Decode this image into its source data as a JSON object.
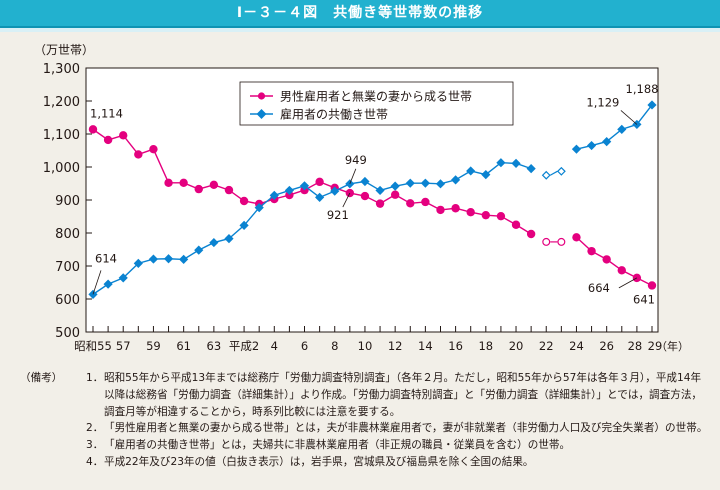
{
  "header": {
    "title": "Ⅰ－３－４図　共働き等世帯数の推移"
  },
  "chart_data": {
    "type": "line",
    "title": "共働き等世帯数の推移",
    "ylabel": "（万世帯）",
    "xlabel": "（年）",
    "ylim": [
      500,
      1300
    ],
    "yticks": [
      500,
      600,
      700,
      800,
      900,
      1000,
      1100,
      1200,
      1300
    ],
    "ytick_labels": [
      "500",
      "600",
      "700",
      "800",
      "900",
      "1,000",
      "1,100",
      "1,200",
      "1,300"
    ],
    "x": [
      "昭和55",
      "56",
      "57",
      "58",
      "59",
      "60",
      "61",
      "62",
      "63",
      "平成元",
      "2",
      "3",
      "4",
      "5",
      "6",
      "7",
      "8",
      "9",
      "10",
      "11",
      "12",
      "13",
      "14",
      "15",
      "16",
      "17",
      "18",
      "19",
      "20",
      "21",
      "22",
      "23",
      "24",
      "25",
      "26",
      "27",
      "28",
      "29"
    ],
    "xtick_labels": [
      {
        "index": 0,
        "label": "昭和55"
      },
      {
        "index": 2,
        "label": "57"
      },
      {
        "index": 4,
        "label": "59"
      },
      {
        "index": 6,
        "label": "61"
      },
      {
        "index": 8,
        "label": "63"
      },
      {
        "index": 10,
        "label": "平成2"
      },
      {
        "index": 12,
        "label": "4"
      },
      {
        "index": 14,
        "label": "6"
      },
      {
        "index": 16,
        "label": "8"
      },
      {
        "index": 18,
        "label": "10"
      },
      {
        "index": 20,
        "label": "12"
      },
      {
        "index": 22,
        "label": "14"
      },
      {
        "index": 24,
        "label": "16"
      },
      {
        "index": 26,
        "label": "18"
      },
      {
        "index": 28,
        "label": "20"
      },
      {
        "index": 30,
        "label": "22"
      },
      {
        "index": 32,
        "label": "24"
      },
      {
        "index": 34,
        "label": "26"
      },
      {
        "index": 36,
        "label": "28"
      },
      {
        "index": 37,
        "label": "29"
      }
    ],
    "hollow_indices": [
      30,
      31
    ],
    "series": [
      {
        "name": "男性雇用者と無業の妻から成る世帯",
        "color": "#e4007f",
        "marker": "circle",
        "values": [
          1114,
          1082,
          1096,
          1038,
          1054,
          952,
          952,
          933,
          946,
          930,
          897,
          888,
          903,
          915,
          930,
          955,
          937,
          921,
          912,
          889,
          916,
          890,
          894,
          870,
          875,
          863,
          854,
          851,
          825,
          797,
          773,
          773,
          787,
          745,
          720,
          687,
          664,
          641
        ]
      },
      {
        "name": "雇用者の共働き世帯",
        "color": "#0a83d1",
        "marker": "diamond",
        "values": [
          614,
          645,
          664,
          708,
          721,
          722,
          720,
          748,
          771,
          783,
          823,
          877,
          914,
          929,
          943,
          908,
          927,
          949,
          956,
          929,
          942,
          951,
          951,
          949,
          961,
          988,
          977,
          1013,
          1011,
          995,
          975,
          987,
          1054,
          1065,
          1077,
          1114,
          1129,
          1188
        ]
      }
    ],
    "annotations": [
      {
        "series": 0,
        "index": 0,
        "label": "1,114"
      },
      {
        "series": 1,
        "index": 0,
        "label": "614"
      },
      {
        "series": 1,
        "index": 17,
        "label": "949"
      },
      {
        "series": 0,
        "index": 17,
        "label": "921"
      },
      {
        "series": 1,
        "index": 36,
        "label": "1,129"
      },
      {
        "series": 1,
        "index": 37,
        "label": "1,188"
      },
      {
        "series": 0,
        "index": 36,
        "label": "664"
      },
      {
        "series": 0,
        "index": 37,
        "label": "641"
      }
    ],
    "legend": {
      "position": "top-center"
    },
    "grid": false
  },
  "notes": {
    "label": "（備考）",
    "items": [
      {
        "num": "1．",
        "text": "昭和55年から平成13年までは総務庁「労働力調査特別調査」（各年２月。ただし，昭和55年から57年は各年３月），平成14年以降は総務省「労働力調査（詳細集計）」より作成。「労働力調査特別調査」と「労働力調査（詳細集計）」とでは，調査方法，調査月等が相違することから，時系列比較には注意を要する。"
      },
      {
        "num": "2．",
        "text": "「男性雇用者と無業の妻から成る世帯」とは，夫が非農林業雇用者で，妻が非就業者（非労働力人口及び完全失業者）の世帯。"
      },
      {
        "num": "3．",
        "text": "「雇用者の共働き世帯」とは，夫婦共に非農林業雇用者（非正規の職員・従業員を含む）の世帯。"
      },
      {
        "num": "4．",
        "text": "平成22年及び23年の値（白抜き表示）は，岩手県，宮城県及び福島県を除く全国の結果。"
      }
    ]
  }
}
